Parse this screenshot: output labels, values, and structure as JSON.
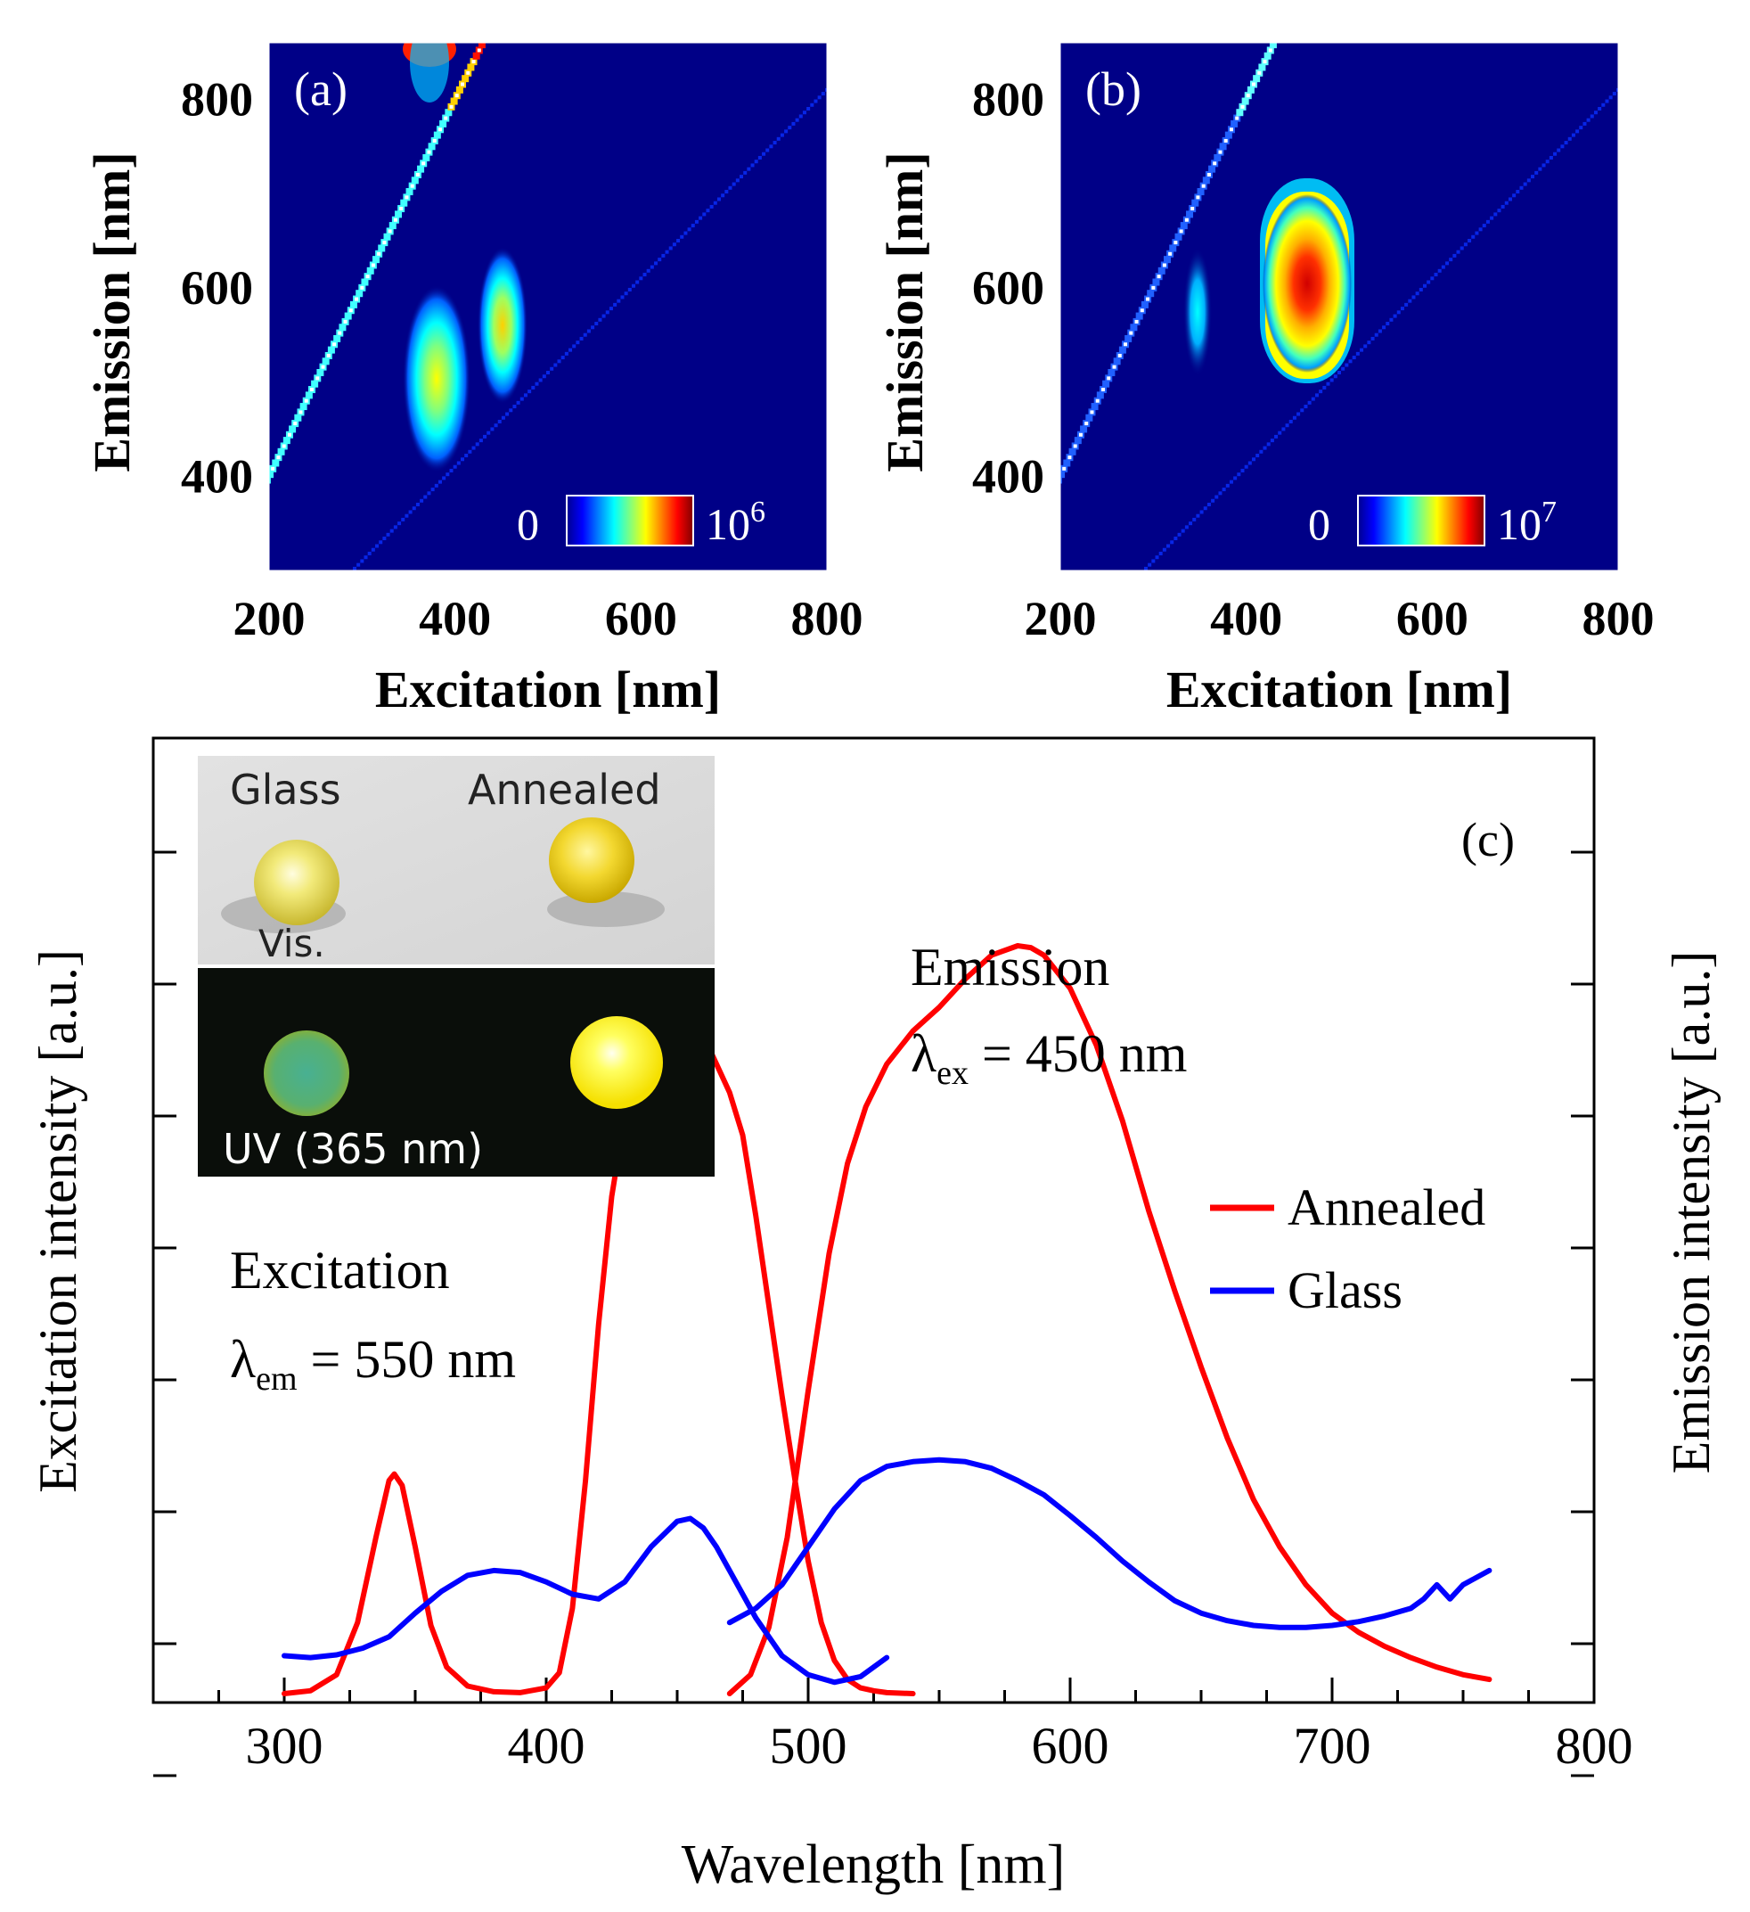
{
  "chart_data": [
    {
      "panel": "a",
      "type": "heatmap",
      "panel_label": "(a)",
      "xlabel": "Excitation [nm]",
      "ylabel": "Emission [nm]",
      "xlim": [
        200,
        800
      ],
      "ylim": [
        300,
        860
      ],
      "xticks": [
        "200",
        "400",
        "600",
        "800"
      ],
      "yticks": [
        "400",
        "600",
        "800"
      ],
      "colorbar": {
        "min_label": "0",
        "max_base": "10",
        "max_exp": "6"
      },
      "features": [
        {
          "type": "peak",
          "excitation": 380,
          "emission": 495,
          "intensity": 0.42
        },
        {
          "type": "peak",
          "excitation": 456,
          "emission": 552,
          "intensity": 0.38
        },
        {
          "type": "scatter_line",
          "note": "Emission = Excitation"
        },
        {
          "type": "scatter_line",
          "note": "Emission = 2 x Excitation"
        }
      ]
    },
    {
      "panel": "b",
      "type": "heatmap",
      "panel_label": "(b)",
      "xlabel": "Excitation [nm]",
      "ylabel": "Emission [nm]",
      "xlim": [
        200,
        800
      ],
      "ylim": [
        300,
        860
      ],
      "xticks": [
        "200",
        "400",
        "600",
        "800"
      ],
      "yticks": [
        "400",
        "600",
        "800"
      ],
      "colorbar": {
        "min_label": "0",
        "max_base": "10",
        "max_exp": "7"
      },
      "features": [
        {
          "type": "peak",
          "excitation": 342,
          "emission": 575,
          "intensity": 0.28
        },
        {
          "type": "peak",
          "excitation": 468,
          "emission": 600,
          "intensity": 0.95
        },
        {
          "type": "scatter_line",
          "note": "Emission = 2 x Excitation"
        }
      ]
    },
    {
      "panel": "c",
      "type": "line",
      "panel_label": "(c)",
      "xlabel": "Wavelength [nm]",
      "ylabel_left": "Excitation intensity [a.u.]",
      "ylabel_right": "Emission intensity [a.u.]",
      "xlim": [
        250,
        800
      ],
      "ylim": [
        0,
        1
      ],
      "xticks": [
        "300",
        "400",
        "500",
        "600",
        "700",
        "800"
      ],
      "legend": {
        "position": "right",
        "entries": [
          "Annealed",
          "Glass"
        ]
      },
      "annotations": {
        "excitation_title": "Excitation",
        "excitation_lambda": "λ",
        "excitation_sub": "em",
        "excitation_value": " = 550 nm",
        "emission_title": "Emission",
        "emission_lambda": "λ",
        "emission_sub": "ex",
        "emission_value": " = 450 nm"
      },
      "series": [
        {
          "name": "Annealed excitation",
          "color": "#ff0000",
          "x": [
            300,
            310,
            320,
            328,
            335,
            340,
            342,
            345,
            350,
            356,
            362,
            370,
            380,
            390,
            400,
            405,
            410,
            415,
            420,
            425,
            430,
            435,
            440,
            445,
            450,
            455,
            460,
            465,
            470,
            475,
            480,
            485,
            490,
            495,
            500,
            505,
            510,
            515,
            520,
            525,
            530,
            540
          ],
          "y": [
            0.0,
            0.003,
            0.02,
            0.075,
            0.165,
            0.225,
            0.232,
            0.22,
            0.155,
            0.072,
            0.028,
            0.008,
            0.002,
            0.001,
            0.006,
            0.022,
            0.09,
            0.225,
            0.39,
            0.525,
            0.61,
            0.66,
            0.685,
            0.69,
            0.695,
            0.69,
            0.695,
            0.665,
            0.635,
            0.59,
            0.505,
            0.41,
            0.315,
            0.225,
            0.14,
            0.075,
            0.035,
            0.015,
            0.006,
            0.003,
            0.001,
            0.0
          ]
        },
        {
          "name": "Annealed emission",
          "color": "#ff0000",
          "x": [
            470,
            478,
            485,
            492,
            500,
            508,
            515,
            522,
            530,
            540,
            550,
            560,
            570,
            580,
            585,
            590,
            600,
            610,
            620,
            630,
            640,
            650,
            660,
            670,
            680,
            690,
            700,
            710,
            720,
            730,
            740,
            750,
            760
          ],
          "y": [
            0.0,
            0.02,
            0.07,
            0.165,
            0.32,
            0.465,
            0.56,
            0.62,
            0.665,
            0.7,
            0.725,
            0.755,
            0.78,
            0.79,
            0.788,
            0.78,
            0.745,
            0.685,
            0.605,
            0.51,
            0.425,
            0.345,
            0.27,
            0.205,
            0.155,
            0.115,
            0.085,
            0.065,
            0.05,
            0.038,
            0.028,
            0.02,
            0.015
          ]
        },
        {
          "name": "Glass excitation",
          "color": "#0000ff",
          "x": [
            300,
            310,
            320,
            330,
            340,
            350,
            360,
            370,
            380,
            390,
            400,
            410,
            420,
            430,
            440,
            450,
            455,
            460,
            465,
            470,
            480,
            490,
            500,
            510,
            520,
            530
          ],
          "y": [
            0.04,
            0.038,
            0.041,
            0.048,
            0.06,
            0.085,
            0.108,
            0.125,
            0.13,
            0.128,
            0.118,
            0.105,
            0.1,
            0.118,
            0.155,
            0.182,
            0.185,
            0.175,
            0.155,
            0.13,
            0.08,
            0.04,
            0.02,
            0.012,
            0.018,
            0.038
          ]
        },
        {
          "name": "Glass emission",
          "color": "#0000ff",
          "x": [
            470,
            480,
            490,
            500,
            510,
            520,
            530,
            540,
            550,
            560,
            570,
            580,
            590,
            600,
            610,
            620,
            630,
            640,
            650,
            660,
            670,
            680,
            690,
            700,
            710,
            720,
            730,
            735,
            740,
            745,
            750,
            760
          ],
          "y": [
            0.075,
            0.09,
            0.115,
            0.155,
            0.195,
            0.225,
            0.24,
            0.245,
            0.247,
            0.245,
            0.238,
            0.225,
            0.21,
            0.188,
            0.165,
            0.14,
            0.118,
            0.098,
            0.085,
            0.077,
            0.072,
            0.07,
            0.07,
            0.072,
            0.076,
            0.082,
            0.09,
            0.1,
            0.115,
            0.1,
            0.115,
            0.13
          ]
        }
      ]
    }
  ],
  "inset": {
    "top_left_label": "Glass",
    "top_right_label": "Annealed",
    "top_bottom_label": "Vis.",
    "bottom_label": "UV (365 nm)"
  },
  "colors": {
    "annealed": "#ff0000",
    "glass": "#0000ff",
    "map_background": "#000087"
  }
}
